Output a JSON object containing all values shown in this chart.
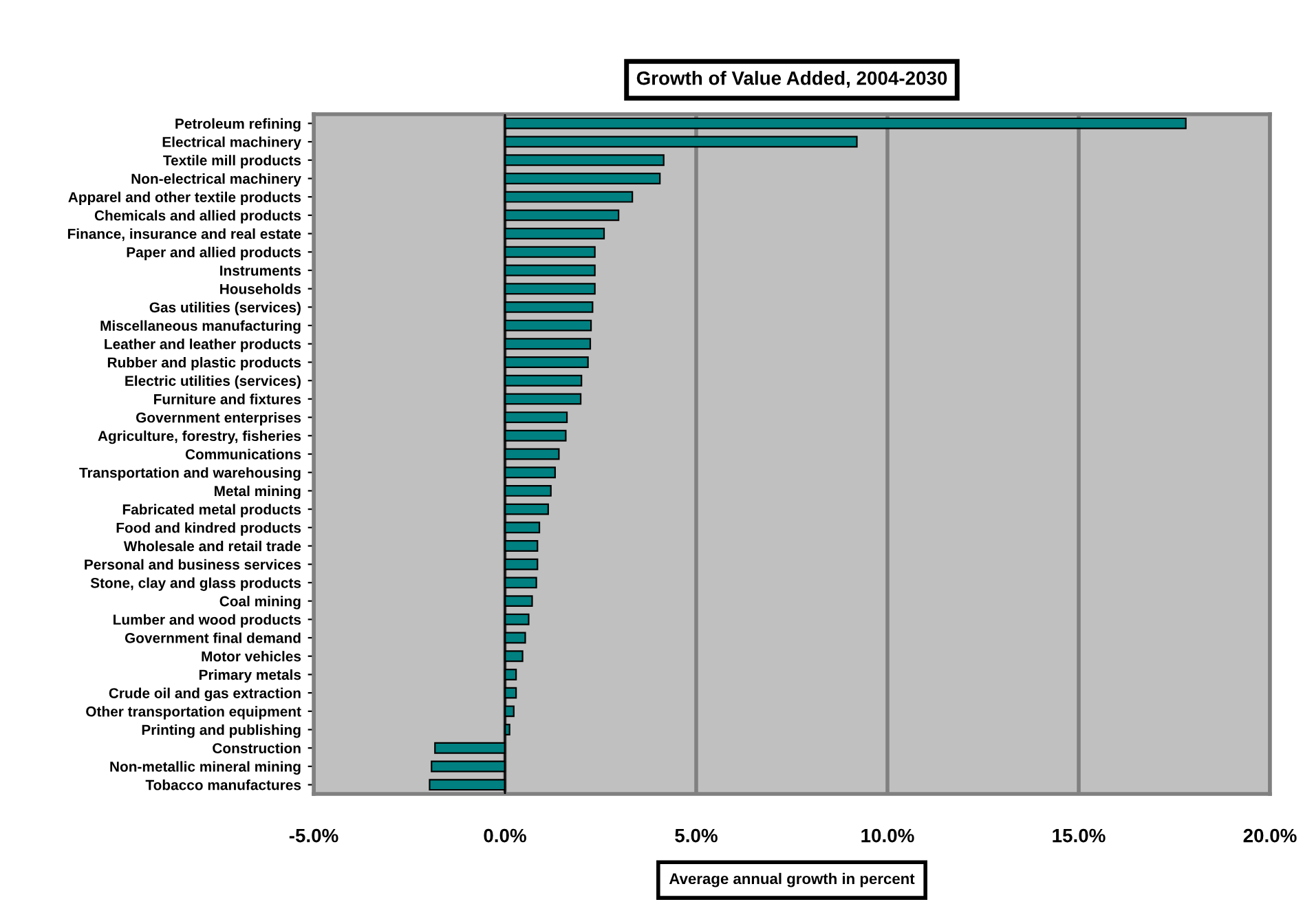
{
  "chart_data": {
    "type": "bar",
    "orientation": "horizontal",
    "title": "Growth of Value Added, 2004-2030",
    "xlabel": "Average annual growth in percent",
    "categories": [
      "Petroleum refining",
      "Electrical machinery",
      "Textile mill products",
      "Non-electrical machinery",
      "Apparel and other textile products",
      "Chemicals and allied products",
      "Finance, insurance and real estate",
      "Paper and allied products",
      "Instruments",
      "Households",
      "Gas utilities (services)",
      "Miscellaneous manufacturing",
      "Leather and leather products",
      "Rubber and plastic products",
      "Electric utilities (services)",
      "Furniture and fixtures",
      "Government enterprises",
      "Agriculture, forestry, fisheries",
      "Communications",
      "Transportation and warehousing",
      "Metal mining",
      "Fabricated metal products",
      "Food and kindred products",
      "Wholesale and retail trade",
      "Personal and business services",
      "Stone, clay and glass products",
      "Coal mining",
      "Lumber and wood products",
      "Government final demand",
      "Motor vehicles",
      "Primary metals",
      "Crude oil and gas extraction",
      "Other transportation equipment",
      "Printing and publishing",
      "Construction",
      "Non-metallic mineral mining",
      "Tobacco manufactures"
    ],
    "values": [
      17.8,
      9.2,
      4.15,
      4.05,
      3.33,
      2.97,
      2.59,
      2.35,
      2.35,
      2.35,
      2.29,
      2.25,
      2.23,
      2.17,
      2.0,
      1.98,
      1.62,
      1.59,
      1.41,
      1.31,
      1.2,
      1.13,
      0.9,
      0.85,
      0.85,
      0.82,
      0.71,
      0.62,
      0.53,
      0.46,
      0.29,
      0.29,
      0.23,
      0.12,
      -1.83,
      -1.92,
      -1.97
    ],
    "color": "#008080",
    "xlim": [
      -5,
      20
    ],
    "xticks": [
      {
        "value": -5,
        "label": "-5.0%"
      },
      {
        "value": 0,
        "label": "0.0%"
      },
      {
        "value": 5,
        "label": "5.0%"
      },
      {
        "value": 10,
        "label": "10.0%"
      },
      {
        "value": 15,
        "label": "15.0%"
      },
      {
        "value": 20,
        "label": "20.0%"
      }
    ],
    "grid": "x",
    "legend": false
  }
}
